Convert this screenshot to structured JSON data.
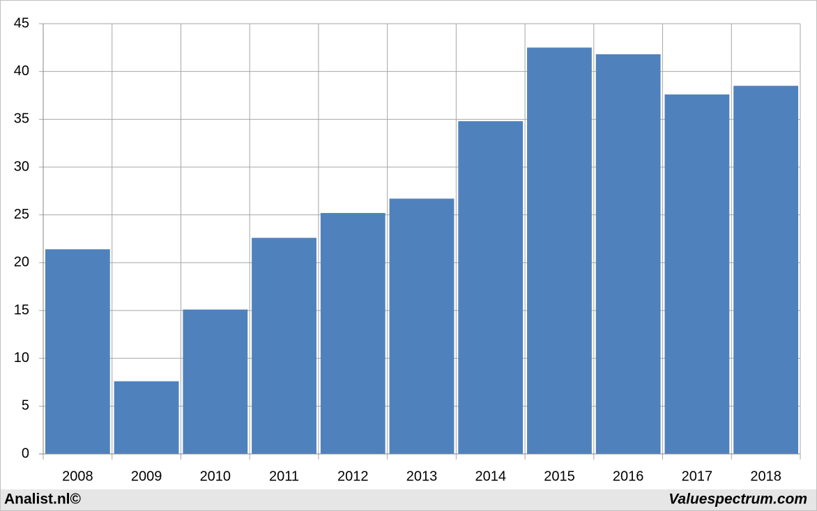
{
  "chart_data": {
    "type": "bar",
    "categories": [
      "2008",
      "2009",
      "2010",
      "2011",
      "2012",
      "2013",
      "2014",
      "2015",
      "2016",
      "2017",
      "2018"
    ],
    "values": [
      21.4,
      7.6,
      15.1,
      22.6,
      25.2,
      26.7,
      34.8,
      42.5,
      41.8,
      37.6,
      38.5
    ],
    "color": "#4f81bd",
    "ylim": [
      0,
      45
    ],
    "yticks": [
      0,
      5,
      10,
      15,
      20,
      25,
      30,
      35,
      40,
      45
    ],
    "grid": true
  },
  "footer": {
    "left": "Analist.nl©",
    "right": "Valuespectrum.com"
  }
}
